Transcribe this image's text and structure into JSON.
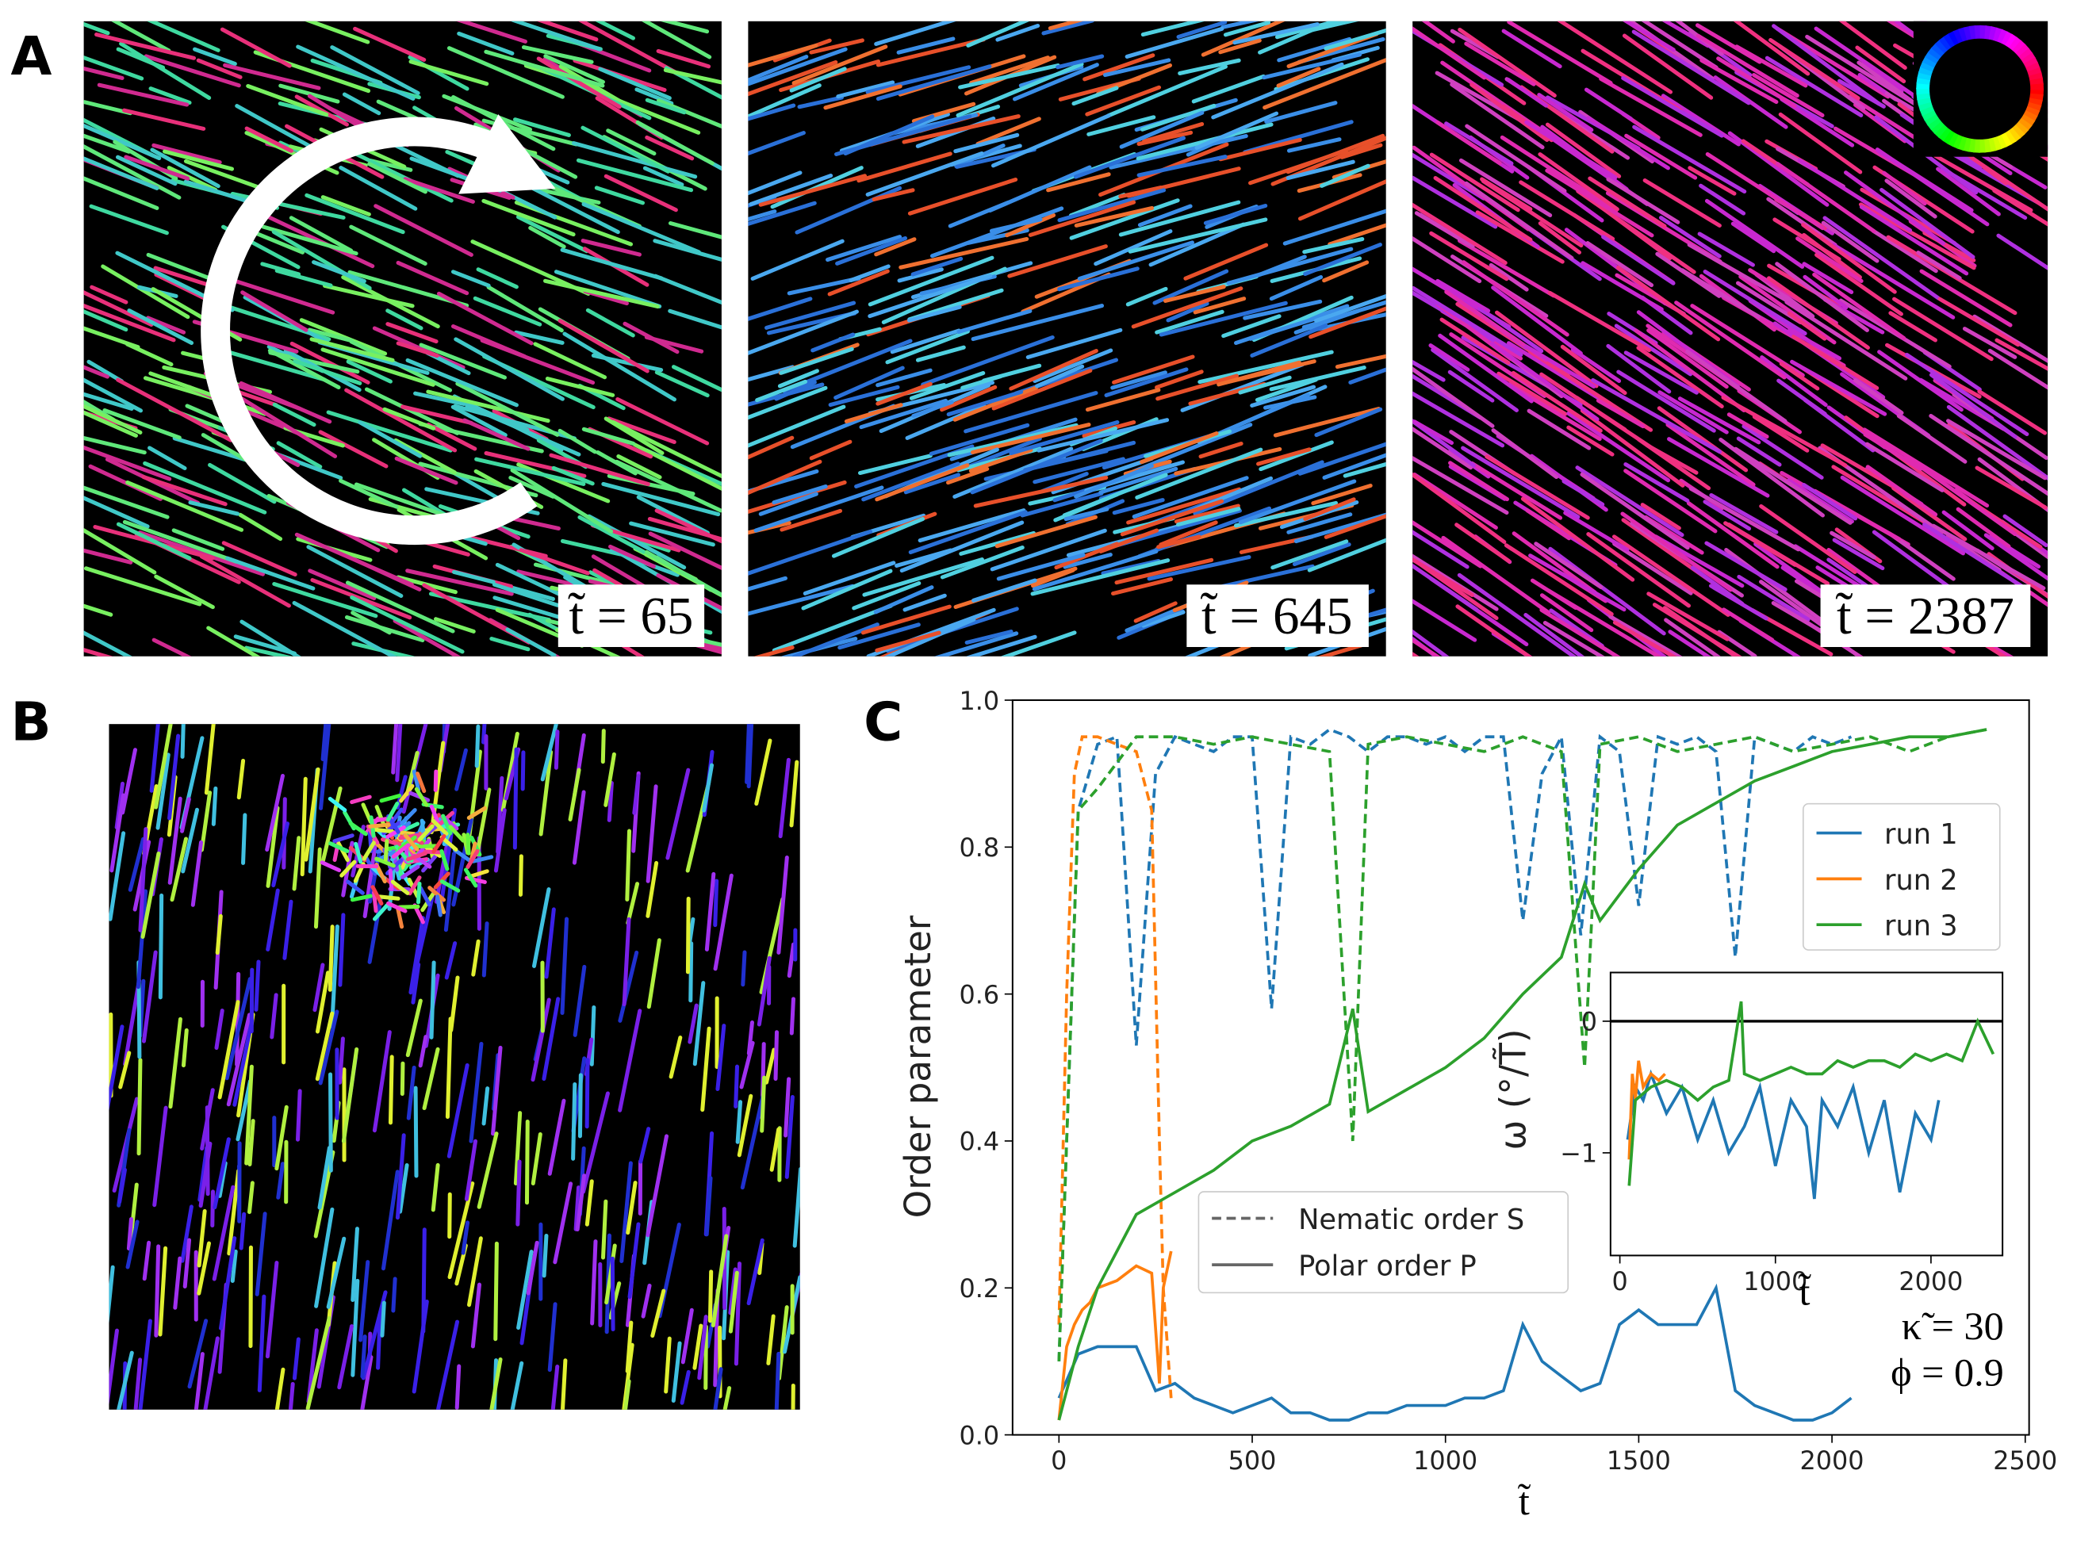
{
  "figure": {
    "panel_labels": [
      "A",
      "B",
      "C"
    ],
    "frame_labels": [
      "t̃ = 65",
      "t̃ = 645",
      "t̃ = 2387"
    ]
  },
  "chart_data": [
    {
      "type": "line",
      "ylabel": "Order parameter",
      "xlabel": "t̃",
      "xlim": [
        -120,
        2510
      ],
      "ylim": [
        0,
        1
      ],
      "xticks": [
        0,
        500,
        1000,
        1500,
        2000,
        2500
      ],
      "yticks": [
        {
          "value": 0,
          "label": "0.0"
        },
        {
          "value": 0.2,
          "label": "0.2"
        },
        {
          "value": 0.4,
          "label": "0.4"
        },
        {
          "value": 0.6,
          "label": "0.6"
        },
        {
          "value": 0.8,
          "label": "0.8"
        },
        {
          "value": 1,
          "label": "1.0"
        }
      ],
      "series": [
        {
          "name": "run 1",
          "color": "#1f77b4",
          "x": [
            0,
            50,
            100,
            150,
            200,
            250,
            300,
            350,
            400,
            450,
            500,
            550,
            600,
            650,
            700,
            750,
            800,
            850,
            900,
            950,
            1000,
            1050,
            1100,
            1150,
            1200,
            1250,
            1300,
            1350,
            1400,
            1450,
            1500,
            1550,
            1600,
            1650,
            1700,
            1750,
            1800,
            1850,
            1900,
            1950,
            2000,
            2050
          ],
          "nematic": [
            0.1,
            0.85,
            0.94,
            0.95,
            0.53,
            0.9,
            0.95,
            0.94,
            0.93,
            0.95,
            0.95,
            0.58,
            0.95,
            0.94,
            0.96,
            0.95,
            0.93,
            0.95,
            0.95,
            0.94,
            0.95,
            0.93,
            0.95,
            0.95,
            0.7,
            0.9,
            0.95,
            0.68,
            0.95,
            0.93,
            0.72,
            0.95,
            0.94,
            0.95,
            0.93,
            0.65,
            0.95,
            0.94,
            0.93,
            0.95,
            0.94,
            0.95
          ],
          "polar": [
            0.05,
            0.11,
            0.12,
            0.12,
            0.12,
            0.06,
            0.07,
            0.05,
            0.04,
            0.03,
            0.04,
            0.05,
            0.03,
            0.03,
            0.02,
            0.02,
            0.03,
            0.03,
            0.04,
            0.04,
            0.04,
            0.05,
            0.05,
            0.06,
            0.15,
            0.1,
            0.08,
            0.06,
            0.07,
            0.15,
            0.17,
            0.15,
            0.15,
            0.15,
            0.2,
            0.06,
            0.04,
            0.03,
            0.02,
            0.02,
            0.03,
            0.05
          ]
        },
        {
          "name": "run 2",
          "color": "#ff7f0e",
          "x": [
            0,
            20,
            40,
            60,
            80,
            100,
            150,
            200,
            240,
            260,
            270,
            290
          ],
          "nematic": [
            0.15,
            0.6,
            0.9,
            0.95,
            0.95,
            0.95,
            0.94,
            0.93,
            0.85,
            0.4,
            0.2,
            0.05
          ],
          "polar": [
            0.02,
            0.12,
            0.15,
            0.17,
            0.18,
            0.2,
            0.21,
            0.23,
            0.22,
            0.07,
            0.2,
            0.25
          ]
        },
        {
          "name": "run 3",
          "color": "#2ca02c",
          "x": [
            0,
            50,
            100,
            200,
            300,
            400,
            500,
            600,
            700,
            760,
            800,
            900,
            1000,
            1100,
            1200,
            1300,
            1360,
            1400,
            1500,
            1600,
            1700,
            1800,
            1900,
            2000,
            2100,
            2200,
            2300,
            2400
          ],
          "nematic": [
            0.1,
            0.85,
            0.88,
            0.95,
            0.95,
            0.94,
            0.95,
            0.94,
            0.93,
            0.4,
            0.94,
            0.95,
            0.94,
            0.93,
            0.95,
            0.93,
            0.5,
            0.94,
            0.95,
            0.93,
            0.94,
            0.95,
            0.93,
            0.94,
            0.95,
            0.93,
            0.95,
            0.96
          ],
          "polar": [
            0.02,
            0.12,
            0.2,
            0.3,
            0.33,
            0.36,
            0.4,
            0.42,
            0.45,
            0.58,
            0.44,
            0.47,
            0.5,
            0.54,
            0.6,
            0.65,
            0.75,
            0.7,
            0.77,
            0.83,
            0.86,
            0.89,
            0.91,
            0.93,
            0.94,
            0.95,
            0.95,
            0.96
          ]
        }
      ],
      "style_legend": [
        {
          "label": "Nematic order S",
          "dashed": true
        },
        {
          "label": "Polar order P",
          "dashed": false
        }
      ],
      "annotations": [
        "κ̃ = 30",
        "ϕ = 0.9"
      ]
    },
    {
      "type": "line",
      "xlabel": "t̃",
      "ylabel": "ω (°/T̃)",
      "xlim": [
        -60,
        2460
      ],
      "ylim": [
        -1.78,
        0.37
      ],
      "xticks": [
        0,
        1000,
        2000
      ],
      "yticks": [
        {
          "value": -1,
          "label": "−1"
        },
        0
      ],
      "hline": 0,
      "series": [
        {
          "color": "#1f77b4",
          "x": [
            50,
            100,
            150,
            200,
            300,
            400,
            500,
            600,
            700,
            800,
            900,
            1000,
            1100,
            1200,
            1250,
            1300,
            1400,
            1500,
            1600,
            1700,
            1800,
            1900,
            2000,
            2050
          ],
          "values": [
            -0.9,
            -0.5,
            -0.6,
            -0.4,
            -0.7,
            -0.5,
            -0.9,
            -0.6,
            -1.0,
            -0.8,
            -0.5,
            -1.1,
            -0.6,
            -0.8,
            -1.35,
            -0.6,
            -0.8,
            -0.5,
            -1.0,
            -0.6,
            -1.3,
            -0.7,
            -0.9,
            -0.6
          ]
        },
        {
          "color": "#ff7f0e",
          "x": [
            60,
            80,
            100,
            120,
            150,
            200,
            250,
            290
          ],
          "values": [
            -1.05,
            -0.4,
            -0.6,
            -0.3,
            -0.5,
            -0.4,
            -0.45,
            -0.4
          ]
        },
        {
          "color": "#2ca02c",
          "x": [
            60,
            100,
            200,
            300,
            400,
            500,
            600,
            700,
            780,
            800,
            900,
            1000,
            1100,
            1200,
            1300,
            1400,
            1500,
            1600,
            1700,
            1800,
            1900,
            2000,
            2100,
            2200,
            2300,
            2400
          ],
          "values": [
            -1.25,
            -0.6,
            -0.5,
            -0.45,
            -0.5,
            -0.6,
            -0.5,
            -0.45,
            0.15,
            -0.4,
            -0.45,
            -0.4,
            -0.35,
            -0.4,
            -0.4,
            -0.3,
            -0.35,
            -0.3,
            -0.3,
            -0.35,
            -0.25,
            -0.3,
            -0.25,
            -0.3,
            0.0,
            -0.25
          ]
        }
      ]
    }
  ]
}
